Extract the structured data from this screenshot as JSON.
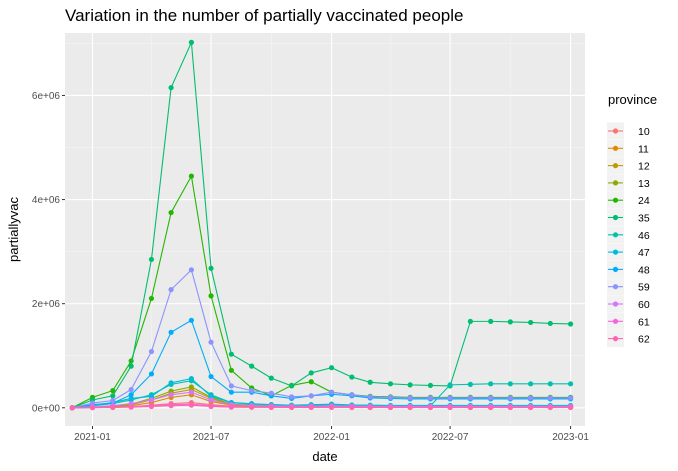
{
  "chart_data": {
    "type": "line",
    "title": "Variation in the number of partially vaccinated people",
    "xlabel": "date",
    "ylabel": "partiallyvac",
    "legend_title": "province",
    "legend_position": "right",
    "grid": true,
    "xlim": [
      "2020-11-20",
      "2023-01-23"
    ],
    "ylim": [
      -350000,
      7200000
    ],
    "x_ticks": [
      {
        "value": "2021-01-01",
        "label": "2021-01"
      },
      {
        "value": "2021-07-01",
        "label": "2021-07"
      },
      {
        "value": "2022-01-01",
        "label": "2022-01"
      },
      {
        "value": "2022-07-01",
        "label": "2022-07"
      },
      {
        "value": "2023-01-01",
        "label": "2023-01"
      }
    ],
    "y_ticks": [
      {
        "value": 0,
        "label": "0e+00"
      },
      {
        "value": 2000000,
        "label": "2e+06"
      },
      {
        "value": 4000000,
        "label": "4e+06"
      },
      {
        "value": 6000000,
        "label": "6e+06"
      }
    ],
    "x": [
      "2020-12-01",
      "2021-01-01",
      "2021-02-01",
      "2021-03-01",
      "2021-04-01",
      "2021-05-01",
      "2021-06-01",
      "2021-07-01",
      "2021-08-01",
      "2021-09-01",
      "2021-10-01",
      "2021-11-01",
      "2021-12-01",
      "2022-01-01",
      "2022-02-01",
      "2022-03-01",
      "2022-04-01",
      "2022-05-01",
      "2022-06-01",
      "2022-07-01",
      "2022-08-01",
      "2022-09-01",
      "2022-10-01",
      "2022-11-01",
      "2022-12-01",
      "2023-01-01"
    ],
    "series": [
      {
        "name": "10",
        "color": "#F8766D",
        "values": [
          0,
          5000,
          8000,
          20000,
          50000,
          80000,
          100000,
          60000,
          30000,
          20000,
          15000,
          12000,
          12000,
          15000,
          10000,
          8000,
          8000,
          8000,
          8000,
          8000,
          8000,
          8000,
          8000,
          8000,
          8000,
          8000
        ]
      },
      {
        "name": "11",
        "color": "#E18A00",
        "values": [
          0,
          8000,
          15000,
          40000,
          100000,
          200000,
          250000,
          120000,
          50000,
          30000,
          25000,
          20000,
          20000,
          25000,
          18000,
          15000,
          14000,
          14000,
          14000,
          14000,
          14000,
          14000,
          14000,
          14000,
          14000,
          14000
        ]
      },
      {
        "name": "12",
        "color": "#BE9C00",
        "values": [
          0,
          10000,
          25000,
          60000,
          150000,
          280000,
          350000,
          180000,
          60000,
          40000,
          30000,
          25000,
          25000,
          30000,
          22000,
          18000,
          16000,
          16000,
          16000,
          16000,
          16000,
          16000,
          16000,
          16000,
          16000,
          16000
        ]
      },
      {
        "name": "13",
        "color": "#8CAB00",
        "values": [
          0,
          15000,
          30000,
          70000,
          180000,
          320000,
          400000,
          200000,
          70000,
          50000,
          40000,
          30000,
          30000,
          35000,
          25000,
          20000,
          18000,
          18000,
          18000,
          18000,
          18000,
          18000,
          18000,
          18000,
          18000,
          18000
        ]
      },
      {
        "name": "24",
        "color": "#24B700",
        "values": [
          0,
          200000,
          330000,
          900000,
          2100000,
          3750000,
          4450000,
          2150000,
          720000,
          380000,
          230000,
          430000,
          500000,
          300000,
          250000,
          220000,
          210000,
          200000,
          200000,
          200000,
          200000,
          200000,
          200000,
          200000,
          200000,
          200000
        ]
      },
      {
        "name": "35",
        "color": "#00BE70",
        "values": [
          0,
          150000,
          230000,
          800000,
          2850000,
          6150000,
          7020000,
          2680000,
          1030000,
          800000,
          570000,
          420000,
          670000,
          770000,
          590000,
          490000,
          460000,
          440000,
          430000,
          420000,
          1660000,
          1660000,
          1650000,
          1640000,
          1620000,
          1610000
        ]
      },
      {
        "name": "46",
        "color": "#00C1AB",
        "values": [
          0,
          40000,
          80000,
          150000,
          250000,
          450000,
          520000,
          250000,
          100000,
          70000,
          60000,
          50000,
          50000,
          60000,
          50000,
          45000,
          40000,
          40000,
          40000,
          440000,
          450000,
          460000,
          460000,
          460000,
          460000,
          460000
        ]
      },
      {
        "name": "47",
        "color": "#00BBDA",
        "values": [
          0,
          50000,
          100000,
          180000,
          220000,
          480000,
          560000,
          220000,
          100000,
          80000,
          60000,
          50000,
          60000,
          70000,
          55000,
          50000,
          45000,
          45000,
          45000,
          45000,
          45000,
          45000,
          45000,
          45000,
          45000,
          45000
        ]
      },
      {
        "name": "48",
        "color": "#00ACFC",
        "values": [
          0,
          60000,
          90000,
          250000,
          650000,
          1450000,
          1680000,
          600000,
          300000,
          300000,
          230000,
          180000,
          230000,
          260000,
          230000,
          190000,
          180000,
          170000,
          170000,
          170000,
          170000,
          170000,
          170000,
          170000,
          170000,
          170000
        ]
      },
      {
        "name": "59",
        "color": "#8B93FF",
        "values": [
          0,
          90000,
          140000,
          350000,
          1080000,
          2270000,
          2650000,
          1260000,
          420000,
          330000,
          280000,
          210000,
          230000,
          300000,
          250000,
          210000,
          200000,
          190000,
          190000,
          190000,
          190000,
          190000,
          190000,
          190000,
          190000,
          190000
        ]
      },
      {
        "name": "60",
        "color": "#D575FE",
        "values": [
          0,
          20000,
          40000,
          80000,
          150000,
          250000,
          300000,
          150000,
          60000,
          40000,
          35000,
          30000,
          30000,
          35000,
          30000,
          28000,
          26000,
          26000,
          26000,
          26000,
          26000,
          26000,
          26000,
          26000,
          26000,
          26000
        ]
      },
      {
        "name": "61",
        "color": "#F962DD",
        "values": [
          0,
          5000,
          10000,
          20000,
          40000,
          60000,
          70000,
          40000,
          20000,
          15000,
          12000,
          10000,
          10000,
          12000,
          10000,
          9000,
          9000,
          9000,
          9000,
          9000,
          9000,
          9000,
          9000,
          9000,
          9000,
          9000
        ]
      },
      {
        "name": "62",
        "color": "#FF65AC",
        "values": [
          0,
          3000,
          6000,
          12000,
          25000,
          40000,
          50000,
          25000,
          12000,
          9000,
          8000,
          7000,
          7000,
          8000,
          7000,
          6000,
          6000,
          6000,
          6000,
          6000,
          6000,
          6000,
          6000,
          6000,
          6000,
          6000
        ]
      }
    ]
  }
}
